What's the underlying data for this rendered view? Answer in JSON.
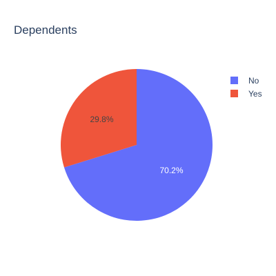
{
  "chart_data": {
    "type": "pie",
    "title": "Dependents",
    "labels": [
      "No",
      "Yes"
    ],
    "values": [
      70.2,
      29.8
    ],
    "value_labels": [
      "70.2%",
      "29.8%"
    ],
    "colors": [
      "#636efa",
      "#ef553b"
    ],
    "label_colors": [
      "#ffffff",
      "#444444"
    ],
    "legend_position": "top-right",
    "start_angle": "top, clockwise"
  }
}
